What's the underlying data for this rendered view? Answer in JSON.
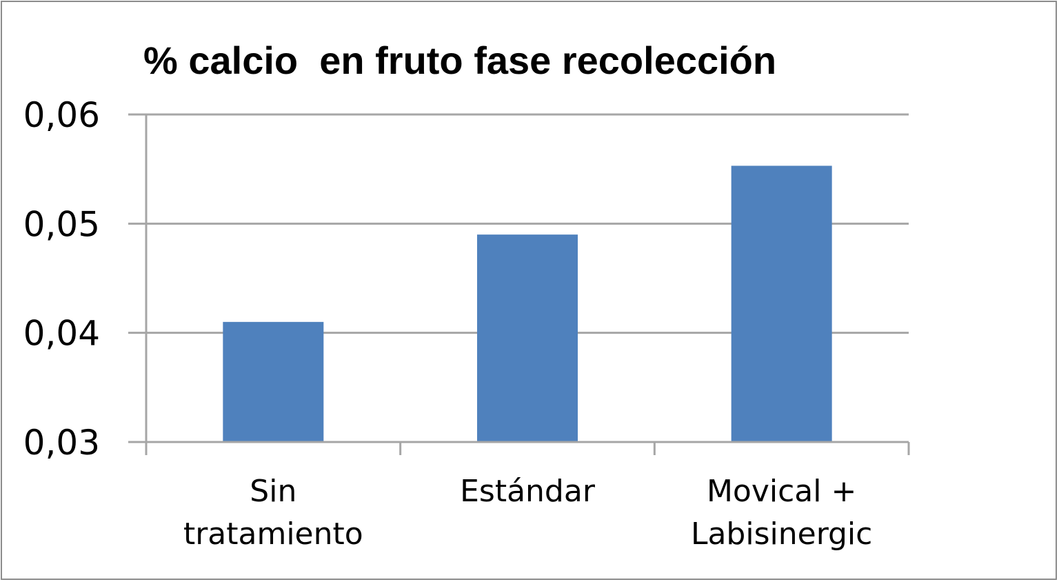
{
  "chart_data": {
    "type": "bar",
    "title": "% calcio  en fruto fase recolección",
    "xlabel": "",
    "ylabel": "",
    "categories": [
      [
        "Sin",
        "tratamiento"
      ],
      [
        "Estándar"
      ],
      [
        "Movical +",
        "Labisinergic"
      ]
    ],
    "values": [
      0.041,
      0.049,
      0.0553
    ],
    "ylim": [
      0.03,
      0.06
    ],
    "yticks": [
      "0,03",
      "0,04",
      "0,05",
      "0,06"
    ],
    "ytick_values": [
      0.03,
      0.04,
      0.05,
      0.06
    ],
    "grid": true,
    "legend": "none",
    "bar_color": "#4f81bd",
    "grid_color": "#a6a6a6",
    "axis_color": "#a6a6a6"
  }
}
